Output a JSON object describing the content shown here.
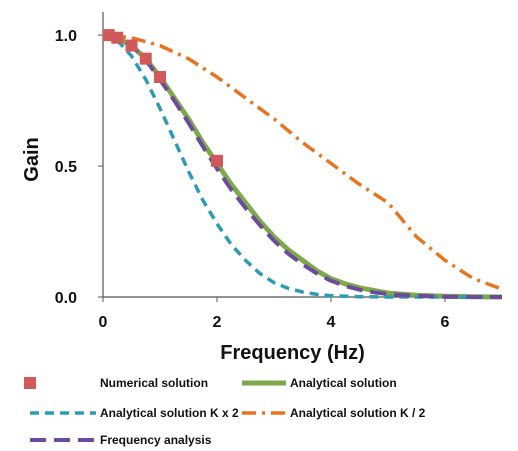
{
  "chart_data": {
    "type": "line",
    "title": "",
    "xlabel": "Frequency (Hz)",
    "ylabel": "Gain",
    "xlim": [
      0,
      7
    ],
    "ylim": [
      0,
      1.05
    ],
    "xticks": [
      0,
      2,
      4,
      6
    ],
    "xtick_labels": [
      "0",
      "2",
      "4",
      "6"
    ],
    "yticks": [
      0,
      0.5,
      1.0
    ],
    "ytick_labels": [
      "0.0",
      "0.5",
      "1.0"
    ],
    "grid": false,
    "legend_position": "bottom",
    "series": [
      {
        "name": "Numerical solution",
        "style": "markers",
        "color": "#d05a5a",
        "x": [
          0.1,
          0.25,
          0.5,
          0.75,
          1.0,
          2.0
        ],
        "y": [
          1.0,
          0.99,
          0.96,
          0.91,
          0.84,
          0.52
        ]
      },
      {
        "name": "Analytical solution",
        "style": "solid",
        "color": "#7fa84a",
        "x": [
          0,
          0.25,
          0.5,
          0.75,
          1.0,
          1.25,
          1.5,
          1.75,
          2.0,
          2.25,
          2.5,
          2.75,
          3.0,
          3.25,
          3.5,
          3.75,
          4.0,
          4.25,
          4.5,
          4.75,
          5.0,
          5.5,
          6.0,
          6.5,
          7.0
        ],
        "y": [
          1.0,
          0.99,
          0.96,
          0.91,
          0.84,
          0.76,
          0.68,
          0.59,
          0.51,
          0.43,
          0.36,
          0.29,
          0.23,
          0.18,
          0.14,
          0.1,
          0.07,
          0.05,
          0.035,
          0.025,
          0.015,
          0.007,
          0.003,
          0.001,
          0.0
        ]
      },
      {
        "name": "Analytical solution K x 2",
        "style": "dashed",
        "color": "#2e9bb5",
        "x": [
          0,
          0.25,
          0.5,
          0.75,
          1.0,
          1.25,
          1.5,
          1.75,
          2.0,
          2.25,
          2.5,
          2.75,
          3.0,
          3.25,
          3.5,
          3.75,
          4.0,
          4.5,
          5.0,
          6.0,
          7.0
        ],
        "y": [
          1.0,
          0.98,
          0.92,
          0.83,
          0.72,
          0.6,
          0.48,
          0.37,
          0.28,
          0.2,
          0.14,
          0.09,
          0.055,
          0.033,
          0.019,
          0.01,
          0.005,
          0.001,
          0.0,
          0.0,
          0.0
        ]
      },
      {
        "name": "Analytical solution K / 2",
        "style": "dashdot",
        "color": "#e8741e",
        "x": [
          0,
          0.5,
          1.0,
          1.5,
          2.0,
          2.5,
          3.0,
          3.5,
          4.0,
          4.5,
          5.0,
          5.5,
          6.0,
          6.5,
          7.0
        ],
        "y": [
          1.0,
          0.99,
          0.96,
          0.91,
          0.84,
          0.76,
          0.68,
          0.59,
          0.51,
          0.43,
          0.36,
          0.23,
          0.14,
          0.07,
          0.03
        ]
      },
      {
        "name": "Frequency analysis",
        "style": "longdash",
        "color": "#6a4b9c",
        "x": [
          0,
          0.25,
          0.5,
          0.75,
          1.0,
          1.25,
          1.5,
          1.75,
          2.0,
          2.25,
          2.5,
          2.75,
          3.0,
          3.25,
          3.5,
          3.75,
          4.0,
          4.25,
          4.5,
          4.75,
          5.0,
          5.5,
          6.0,
          6.5,
          7.0
        ],
        "y": [
          1.0,
          0.99,
          0.96,
          0.905,
          0.83,
          0.75,
          0.665,
          0.575,
          0.49,
          0.41,
          0.34,
          0.275,
          0.215,
          0.165,
          0.125,
          0.09,
          0.062,
          0.042,
          0.028,
          0.018,
          0.011,
          0.004,
          0.001,
          0.0,
          0.0
        ]
      }
    ]
  }
}
